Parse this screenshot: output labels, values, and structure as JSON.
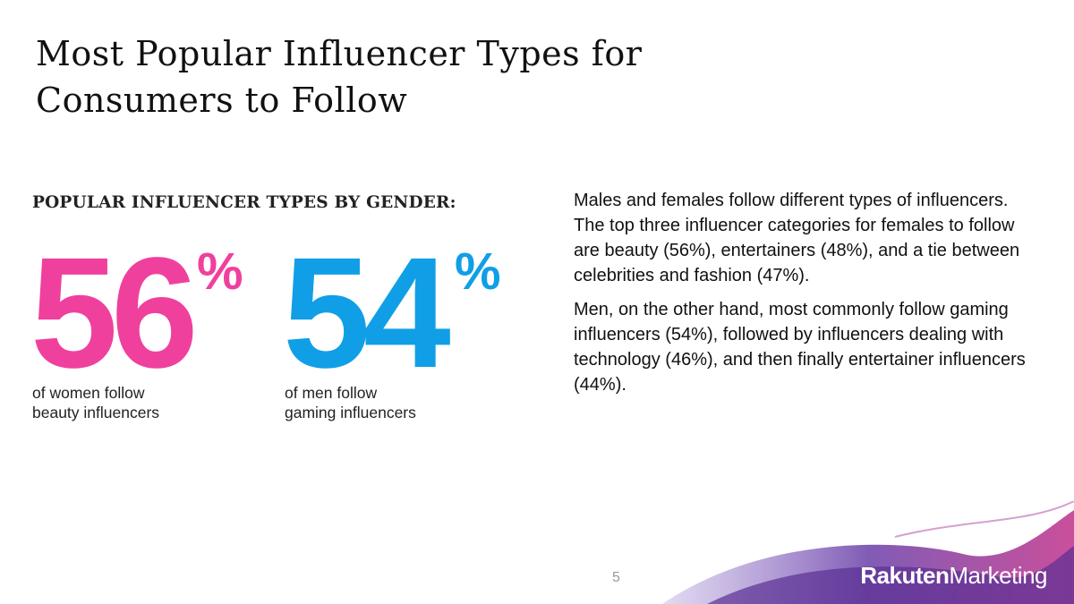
{
  "header": {
    "title": [
      "Most Popular Influencer Types for",
      "Consumers to Follow"
    ]
  },
  "stats": {
    "heading": "POPULAR INFLUENCER TYPES BY GENDER:",
    "items": [
      {
        "value": 56,
        "unit": "%",
        "caption": [
          "of women follow",
          "beauty influencers"
        ]
      },
      {
        "value": 54,
        "unit": "%",
        "caption": [
          "of men follow",
          "gaming influencers"
        ]
      }
    ]
  },
  "body": {
    "paragraphs": [
      "Males and females follow different types of influencers. The top three influencer categories for females to follow are beauty (56%), entertainers (48%), and a tie between celebrities and fashion (47%).",
      "Men, on the other hand, most commonly follow gaming influencers (54%), followed by influencers dealing with technology (46%), and then finally entertainer influencers (44%)."
    ]
  },
  "footer": {
    "page_number": 5,
    "logo": {
      "brand": "Rakuten",
      "product": "Marketing"
    }
  }
}
